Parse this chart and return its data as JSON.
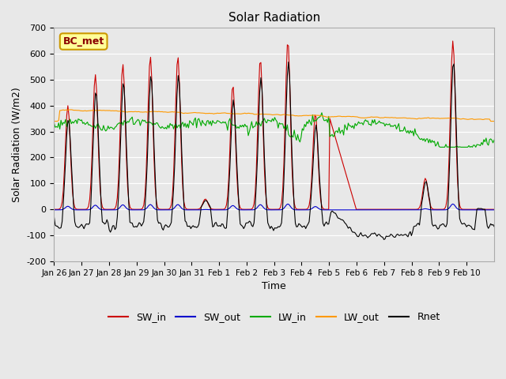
{
  "title": "Solar Radiation",
  "xlabel": "Time",
  "ylabel": "Solar Radiation (W/m2)",
  "ylim": [
    -200,
    700
  ],
  "yticks": [
    -200,
    -100,
    0,
    100,
    200,
    300,
    400,
    500,
    600,
    700
  ],
  "xtick_labels": [
    "Jan 26",
    "Jan 27",
    "Jan 28",
    "Jan 29",
    "Jan 30",
    "Jan 31",
    "Feb 1",
    "Feb 2",
    "Feb 3",
    "Feb 4",
    "Feb 5",
    "Feb 6",
    "Feb 7",
    "Feb 8",
    "Feb 9",
    "Feb 10"
  ],
  "annotation_text": "BC_met",
  "background_color": "#e8e8e8",
  "colors": {
    "SW_in": "#cc0000",
    "SW_out": "#0000cc",
    "LW_in": "#00aa00",
    "LW_out": "#ff9900",
    "Rnet": "#000000"
  },
  "legend_entries": [
    "SW_in",
    "SW_out",
    "LW_in",
    "LW_out",
    "Rnet"
  ],
  "n_days": 16
}
